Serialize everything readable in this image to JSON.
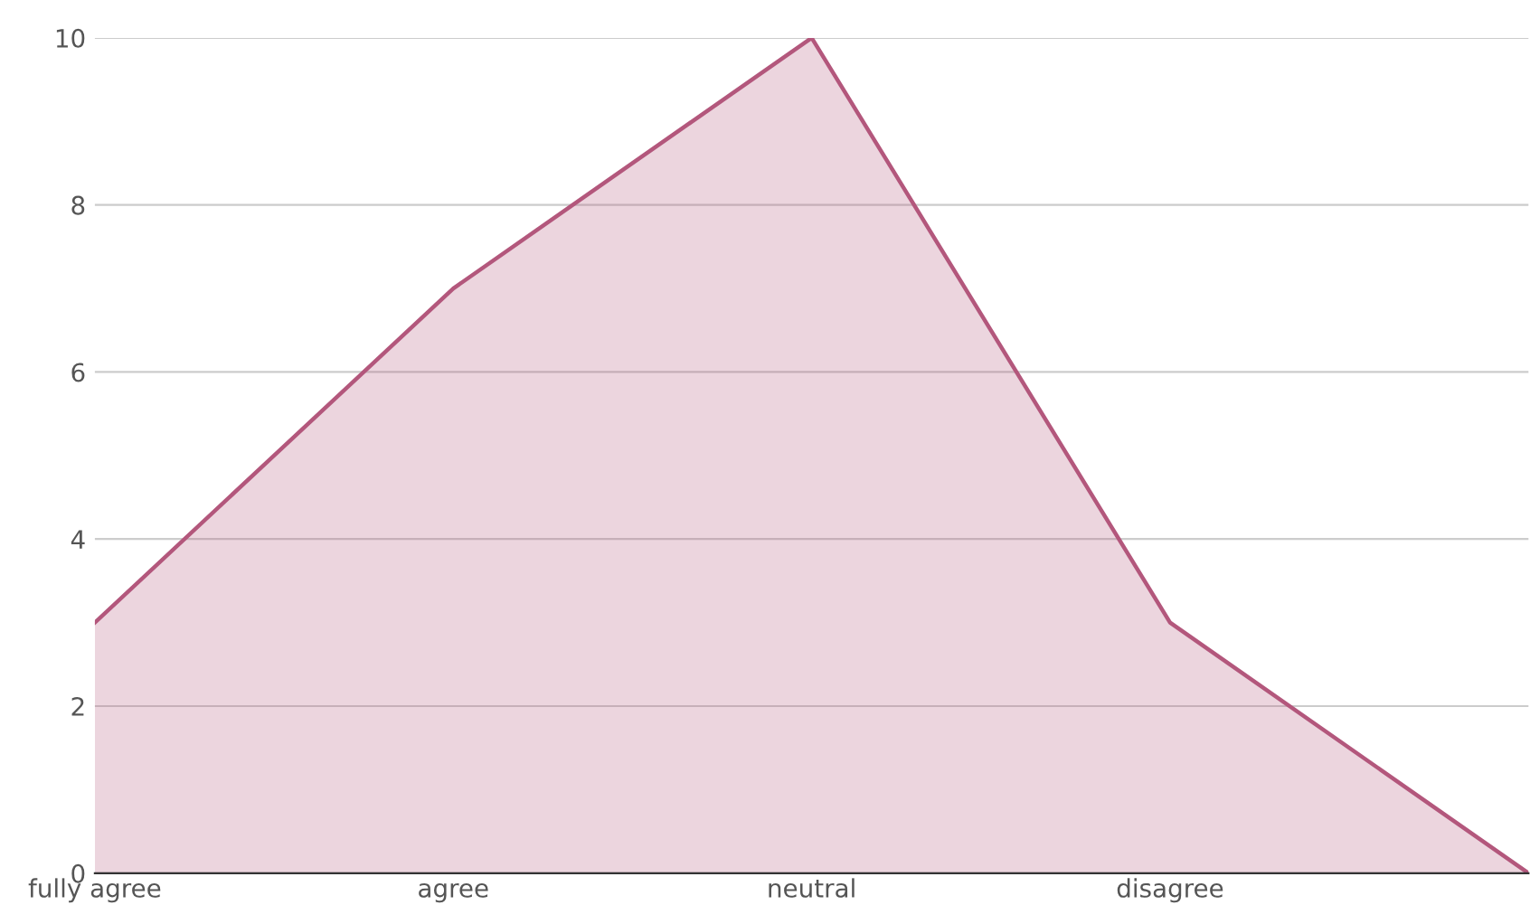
{
  "chart_data": {
    "type": "area",
    "categories": [
      "fully agree",
      "agree",
      "neutral",
      "disagree",
      null
    ],
    "series": [
      {
        "color": "#b3577c",
        "values": [
          3,
          7,
          10,
          3,
          0
        ]
      }
    ],
    "ylim": [
      0,
      10
    ],
    "yticks": [
      0,
      2,
      4,
      6,
      8,
      10
    ],
    "grid": "y",
    "legend": false
  }
}
